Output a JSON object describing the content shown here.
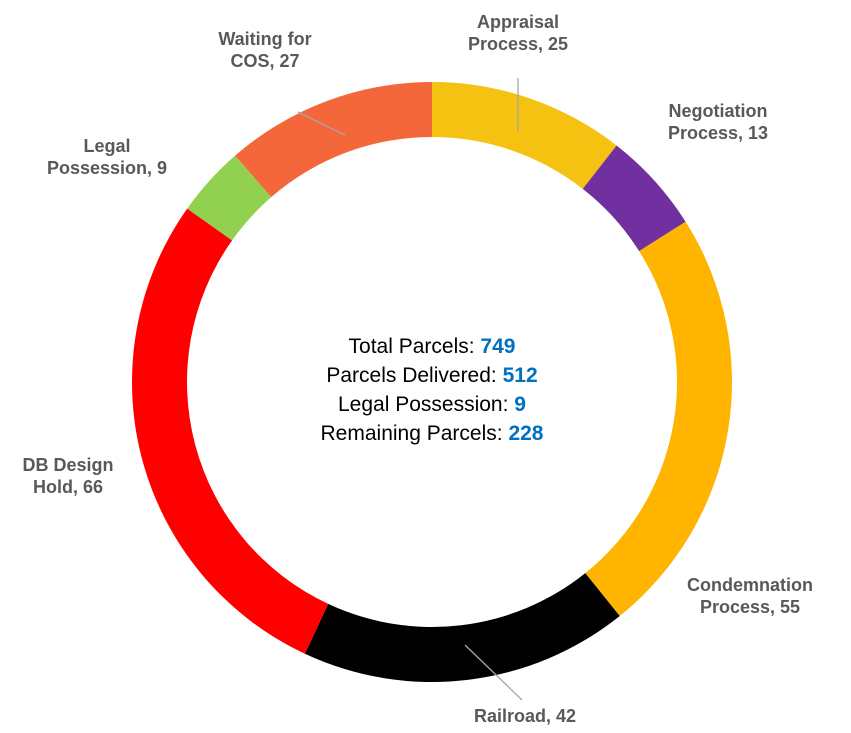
{
  "chart_data": {
    "type": "donut",
    "categories": [
      "Appraisal Process",
      "Negotiation Process",
      "Condemnation Process",
      "Railroad",
      "DB Design Hold",
      "Legal Possession",
      "Waiting for COS"
    ],
    "values": [
      25,
      13,
      55,
      42,
      66,
      9,
      27
    ],
    "colors": [
      "#f5c211",
      "#7030a0",
      "#ffb500",
      "#000000",
      "#ff0000",
      "#92d050",
      "#f4673a"
    ],
    "center_text": [
      {
        "label": "Total Parcels:",
        "value": 749
      },
      {
        "label": "Parcels Delivered:",
        "value": 512
      },
      {
        "label": "Legal Possession:",
        "value": 9
      },
      {
        "label": "Remaining Parcels:",
        "value": 228
      }
    ]
  }
}
